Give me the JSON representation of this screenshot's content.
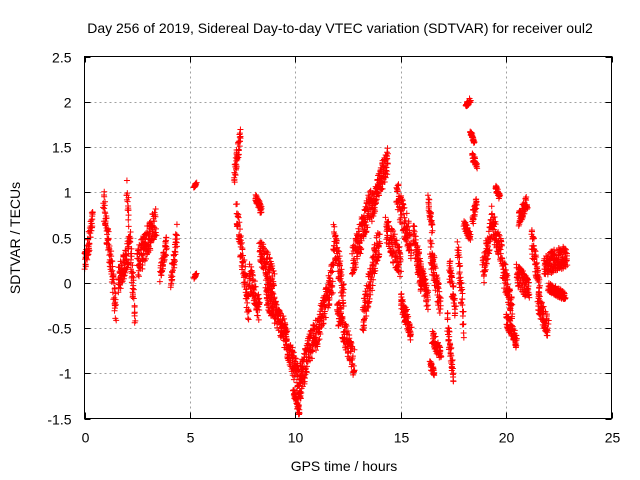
{
  "chart_data": {
    "type": "scatter",
    "title": "Day 256 of 2019, Sidereal Day-to-day VTEC variation (SDTVAR) for receiver oul2",
    "xlabel": "GPS time / hours",
    "ylabel": "SDTVAR / TECUs",
    "xlim": [
      0,
      25
    ],
    "ylim": [
      -1.5,
      2.5
    ],
    "grid": true,
    "x_ticks": [
      "0",
      "5",
      "10",
      "15",
      "20",
      "25"
    ],
    "y_ticks": [
      "-1.5",
      "-1",
      "-0.5",
      "0",
      "0.5",
      "1",
      "1.5",
      "2",
      "2.5"
    ],
    "marker": "plus",
    "series": [
      {
        "name": "SDTVAR",
        "color": "#ff0000",
        "segments": [
          {
            "x": [
              0.0,
              0.4
            ],
            "y": [
              0.2,
              0.7
            ],
            "noise": 0.25
          },
          {
            "x": [
              0.9,
              1.5
            ],
            "y": [
              0.9,
              -0.3
            ],
            "noise": 0.3
          },
          {
            "x": [
              1.6,
              2.1
            ],
            "y": [
              0.0,
              0.35
            ],
            "noise": 0.3
          },
          {
            "x": [
              2.0,
              2.4
            ],
            "y": [
              1.0,
              -0.35
            ],
            "noise": 0.35
          },
          {
            "x": [
              2.5,
              3.4
            ],
            "y": [
              0.2,
              0.7
            ],
            "noise": 0.35
          },
          {
            "x": [
              3.6,
              3.9
            ],
            "y": [
              0.1,
              0.45
            ],
            "noise": 0.2
          },
          {
            "x": [
              4.1,
              4.4
            ],
            "y": [
              0.0,
              0.55
            ],
            "noise": 0.2
          },
          {
            "x": [
              5.2,
              5.3
            ],
            "y": [
              1.05,
              1.1
            ],
            "noise": 0.02
          },
          {
            "x": [
              5.2,
              5.3
            ],
            "y": [
              0.05,
              0.1
            ],
            "noise": 0.02
          },
          {
            "x": [
              7.1,
              7.4
            ],
            "y": [
              1.15,
              1.65
            ],
            "noise": 0.2
          },
          {
            "x": [
              7.2,
              7.8
            ],
            "y": [
              0.8,
              -0.3
            ],
            "noise": 0.3
          },
          {
            "x": [
              7.8,
              8.3
            ],
            "y": [
              0.1,
              -0.3
            ],
            "noise": 0.3
          },
          {
            "x": [
              8.1,
              8.4
            ],
            "y": [
              0.95,
              0.8
            ],
            "noise": 0.1
          },
          {
            "x": [
              8.3,
              9.0
            ],
            "y": [
              0.4,
              0.0
            ],
            "noise": 0.3
          },
          {
            "x": [
              8.6,
              9.6
            ],
            "y": [
              -0.1,
              -0.6
            ],
            "noise": 0.3
          },
          {
            "x": [
              9.5,
              10.3
            ],
            "y": [
              -0.6,
              -1.2
            ],
            "noise": 0.3
          },
          {
            "x": [
              9.9,
              10.2
            ],
            "y": [
              -1.2,
              -1.42
            ],
            "noise": 0.1
          },
          {
            "x": [
              10.2,
              11.0
            ],
            "y": [
              -1.1,
              -0.5
            ],
            "noise": 0.35
          },
          {
            "x": [
              11.0,
              11.8
            ],
            "y": [
              -0.6,
              0.1
            ],
            "noise": 0.35
          },
          {
            "x": [
              11.8,
              12.3
            ],
            "y": [
              0.5,
              -0.1
            ],
            "noise": 0.35
          },
          {
            "x": [
              12.0,
              12.8
            ],
            "y": [
              -0.3,
              -0.9
            ],
            "noise": 0.3
          },
          {
            "x": [
              12.7,
              13.6
            ],
            "y": [
              0.2,
              0.9
            ],
            "noise": 0.35
          },
          {
            "x": [
              13.2,
              14.0
            ],
            "y": [
              -0.4,
              0.5
            ],
            "noise": 0.35
          },
          {
            "x": [
              13.6,
              14.4
            ],
            "y": [
              0.8,
              1.38
            ],
            "noise": 0.3
          },
          {
            "x": [
              14.3,
              15.0
            ],
            "y": [
              0.6,
              0.2
            ],
            "noise": 0.35
          },
          {
            "x": [
              14.8,
              15.5
            ],
            "y": [
              1.0,
              0.4
            ],
            "noise": 0.35
          },
          {
            "x": [
              15.0,
              15.5
            ],
            "y": [
              -0.2,
              -0.55
            ],
            "noise": 0.2
          },
          {
            "x": [
              15.6,
              16.0
            ],
            "y": [
              0.6,
              -0.1
            ],
            "noise": 0.25
          },
          {
            "x": [
              15.8,
              16.3
            ],
            "y": [
              0.3,
              -0.2
            ],
            "noise": 0.25
          },
          {
            "x": [
              16.3,
              16.5
            ],
            "y": [
              0.9,
              0.6
            ],
            "noise": 0.15
          },
          {
            "x": [
              16.4,
              16.9
            ],
            "y": [
              0.4,
              -0.3
            ],
            "noise": 0.3
          },
          {
            "x": [
              16.5,
              16.9
            ],
            "y": [
              -0.6,
              -0.8
            ],
            "noise": 0.15
          },
          {
            "x": [
              16.4,
              16.6
            ],
            "y": [
              -0.9,
              -1.0
            ],
            "noise": 0.08
          },
          {
            "x": [
              17.2,
              17.5
            ],
            "y": [
              -0.4,
              -1.05
            ],
            "noise": 0.25
          },
          {
            "x": [
              17.3,
              17.6
            ],
            "y": [
              0.2,
              -0.3
            ],
            "noise": 0.25
          },
          {
            "x": [
              17.7,
              18.0
            ],
            "y": [
              0.4,
              -0.5
            ],
            "noise": 0.3
          },
          {
            "x": [
              18.0,
              18.3
            ],
            "y": [
              0.65,
              0.5
            ],
            "noise": 0.1
          },
          {
            "x": [
              18.1,
              18.3
            ],
            "y": [
              1.95,
              2.02
            ],
            "noise": 0.06
          },
          {
            "x": [
              18.4,
              18.6
            ],
            "y": [
              1.4,
              1.3
            ],
            "noise": 0.08
          },
          {
            "x": [
              18.4,
              18.6
            ],
            "y": [
              0.7,
              0.9
            ],
            "noise": 0.15
          },
          {
            "x": [
              18.3,
              18.5
            ],
            "y": [
              1.67,
              1.55
            ],
            "noise": 0.04
          },
          {
            "x": [
              18.9,
              19.3
            ],
            "y": [
              0.1,
              0.6
            ],
            "noise": 0.3
          },
          {
            "x": [
              19.3,
              19.8
            ],
            "y": [
              0.7,
              0.3
            ],
            "noise": 0.3
          },
          {
            "x": [
              19.5,
              19.7
            ],
            "y": [
              1.05,
              0.95
            ],
            "noise": 0.06
          },
          {
            "x": [
              19.8,
              20.3
            ],
            "y": [
              0.2,
              -0.3
            ],
            "noise": 0.3
          },
          {
            "x": [
              20.0,
              20.5
            ],
            "y": [
              -0.4,
              -0.65
            ],
            "noise": 0.15
          },
          {
            "x": [
              20.5,
              21.1
            ],
            "y": [
              0.1,
              -0.1
            ],
            "noise": 0.25
          },
          {
            "x": [
              20.6,
              21.0
            ],
            "y": [
              0.7,
              0.9
            ],
            "noise": 0.15
          },
          {
            "x": [
              21.2,
              21.6
            ],
            "y": [
              0.5,
              -0.1
            ],
            "noise": 0.3
          },
          {
            "x": [
              21.5,
              22.0
            ],
            "y": [
              -0.2,
              -0.5
            ],
            "noise": 0.25
          },
          {
            "x": [
              21.8,
              22.9
            ],
            "y": [
              0.2,
              0.3
            ],
            "noise": 0.25
          },
          {
            "x": [
              22.0,
              22.8
            ],
            "y": [
              -0.05,
              -0.15
            ],
            "noise": 0.1
          }
        ]
      }
    ]
  }
}
